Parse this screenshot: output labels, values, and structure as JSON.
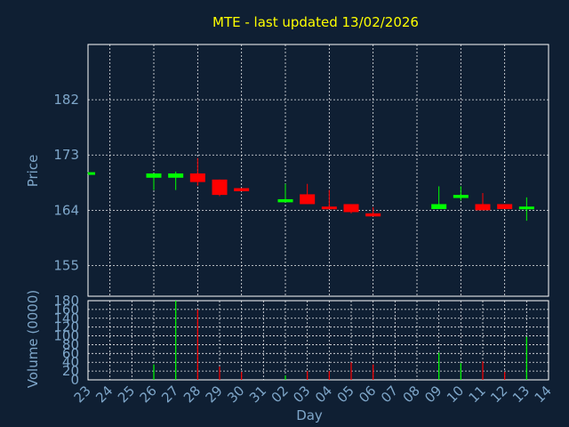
{
  "chart_data": [
    {
      "type": "candlestick",
      "title": "MTE - last updated 13/02/2026",
      "ylabel": "Price",
      "xlabel": "Day",
      "ylim": [
        150,
        191
      ],
      "yticks": [
        155,
        164,
        173,
        182
      ],
      "grid": true,
      "x": [
        "23",
        "24",
        "25",
        "26",
        "27",
        "28",
        "29",
        "30",
        "31",
        "02",
        "03",
        "04",
        "05",
        "06",
        "07",
        "08",
        "09",
        "10",
        "11",
        "12",
        "13",
        "14"
      ],
      "candles": [
        {
          "x": "23",
          "open": 170.0,
          "close": 170.2,
          "high": 170.2,
          "low": 170.0,
          "dir": "up"
        },
        {
          "x": "26",
          "open": 169.3,
          "close": 170.0,
          "high": 170.0,
          "low": 167.3,
          "dir": "up"
        },
        {
          "x": "27",
          "open": 169.3,
          "close": 170.0,
          "high": 170.3,
          "low": 167.3,
          "dir": "up"
        },
        {
          "x": "28",
          "open": 170.0,
          "close": 168.6,
          "high": 172.5,
          "low": 168.0,
          "dir": "down"
        },
        {
          "x": "29",
          "open": 169.0,
          "close": 166.5,
          "high": 169.0,
          "low": 166.3,
          "dir": "down"
        },
        {
          "x": "30",
          "open": 167.6,
          "close": 167.1,
          "high": 167.6,
          "low": 167.1,
          "dir": "down"
        },
        {
          "x": "02",
          "open": 165.3,
          "close": 165.8,
          "high": 168.3,
          "low": 165.3,
          "dir": "up"
        },
        {
          "x": "03",
          "open": 166.6,
          "close": 165.0,
          "high": 168.3,
          "low": 165.0,
          "dir": "down"
        },
        {
          "x": "04",
          "open": 164.6,
          "close": 164.3,
          "high": 167.3,
          "low": 164.3,
          "dir": "down"
        },
        {
          "x": "05",
          "open": 165.0,
          "close": 163.7,
          "high": 165.0,
          "low": 163.5,
          "dir": "down"
        },
        {
          "x": "06",
          "open": 163.5,
          "close": 163.0,
          "high": 164.5,
          "low": 163.0,
          "dir": "down"
        },
        {
          "x": "09",
          "open": 164.2,
          "close": 165.0,
          "high": 167.9,
          "low": 164.2,
          "dir": "up"
        },
        {
          "x": "10",
          "open": 166.0,
          "close": 166.5,
          "high": 167.9,
          "low": 165.6,
          "dir": "up"
        },
        {
          "x": "11",
          "open": 165.0,
          "close": 164.0,
          "high": 166.8,
          "low": 164.0,
          "dir": "down"
        },
        {
          "x": "12",
          "open": 165.0,
          "close": 164.2,
          "high": 165.0,
          "low": 164.2,
          "dir": "down"
        },
        {
          "x": "13",
          "open": 164.2,
          "close": 164.6,
          "high": 166.1,
          "low": 162.3,
          "dir": "up"
        }
      ]
    },
    {
      "type": "bar",
      "ylabel": "Volume (0000)",
      "ylim": [
        0,
        180
      ],
      "yticks": [
        0,
        20,
        40,
        60,
        80,
        100,
        120,
        140,
        160,
        180
      ],
      "grid": true,
      "bars": [
        {
          "x": "26",
          "value": 35,
          "dir": "up"
        },
        {
          "x": "27",
          "value": 180,
          "dir": "up"
        },
        {
          "x": "28",
          "value": 160,
          "dir": "down"
        },
        {
          "x": "29",
          "value": 30,
          "dir": "down"
        },
        {
          "x": "30",
          "value": 18,
          "dir": "down"
        },
        {
          "x": "02",
          "value": 10,
          "dir": "up"
        },
        {
          "x": "03",
          "value": 20,
          "dir": "down"
        },
        {
          "x": "04",
          "value": 20,
          "dir": "down"
        },
        {
          "x": "05",
          "value": 40,
          "dir": "down"
        },
        {
          "x": "06",
          "value": 35,
          "dir": "down"
        },
        {
          "x": "09",
          "value": 62,
          "dir": "up"
        },
        {
          "x": "10",
          "value": 38,
          "dir": "up"
        },
        {
          "x": "11",
          "value": 42,
          "dir": "down"
        },
        {
          "x": "12",
          "value": 18,
          "dir": "down"
        },
        {
          "x": "13",
          "value": 98,
          "dir": "up"
        }
      ]
    }
  ],
  "colors": {
    "up": "#00ff00",
    "down": "#ff0000",
    "grid": "#ffffff",
    "text": "#7ea6c9",
    "title": "#ffff00",
    "background": "#0f1f33"
  }
}
